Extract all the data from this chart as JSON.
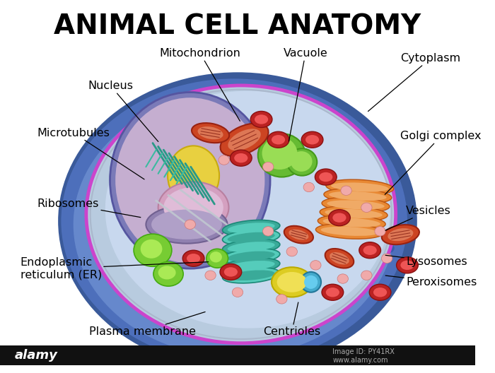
{
  "title": "ANIMAL CELL ANATOMY",
  "background_color": "#ffffff",
  "title_fontsize": 28,
  "title_fontweight": "bold",
  "label_fontsize": 11.5,
  "footer_text": "alamy",
  "footer_id": "Image ID: PY41RX",
  "footer_url": "www.alamy.com",
  "cell_outer_dark": "#3a5a9a",
  "cell_outer_mid": "#4d6fbb",
  "cell_outer_light": "#6688cc",
  "cell_inner_bg": "#b8cbdf",
  "cytosol_color": "#c8d8ee",
  "nucleus_outer": "#7a7ab8",
  "nucleus_inner": "#c5aed0",
  "nucleolus_yellow": "#e8d040",
  "nucleolus_base": "#d4a0c0",
  "nuc_base_purple": "#9080b0",
  "er_teal": "#3aaa99",
  "er_teal_light": "#55ccbb",
  "golgi_orange": "#e88833",
  "golgi_light": "#f0aa66",
  "mito_dark": "#cc4422",
  "mito_light": "#dd7755",
  "vacuole_green": "#66bb33",
  "vacuole_green_light": "#99dd55",
  "lysosome_red": "#cc2222",
  "lysosome_pink": "#ee8888",
  "centriole_yellow": "#ddcc22",
  "microtubule_gray": "#aaaaaa",
  "plasma_membrane_purple": "#cc44cc",
  "dark_spots": "#3355aa"
}
